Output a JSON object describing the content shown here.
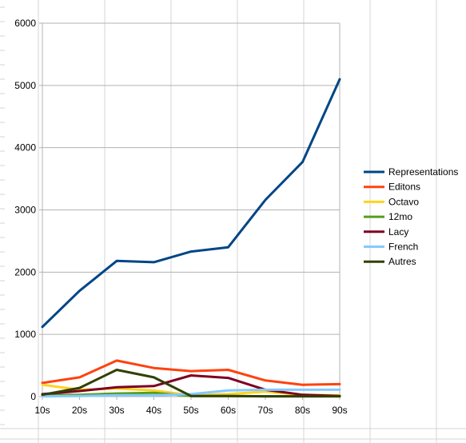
{
  "chart_data": {
    "type": "line",
    "title": "",
    "xlabel": "",
    "ylabel": "",
    "categories": [
      "10s",
      "20s",
      "30s",
      "40s",
      "50s",
      "60s",
      "70s",
      "80s",
      "90s"
    ],
    "ylim": [
      0,
      6000
    ],
    "yticks": [
      0,
      1000,
      2000,
      3000,
      4000,
      5000,
      6000
    ],
    "grid": "horizontal",
    "legend_position": "right",
    "series": [
      {
        "name": "Representations",
        "color": "#004586",
        "values": [
          1120,
          1700,
          2180,
          2160,
          2330,
          2400,
          3160,
          3770,
          5100
        ]
      },
      {
        "name": "Editons",
        "color": "#ff420e",
        "values": [
          220,
          310,
          580,
          460,
          410,
          430,
          260,
          190,
          200
        ]
      },
      {
        "name": " Octavo",
        "color": "#ffd320",
        "values": [
          190,
          110,
          130,
          100,
          20,
          40,
          80,
          30,
          20
        ]
      },
      {
        "name": "12mo",
        "color": "#579d1c",
        "values": [
          20,
          30,
          50,
          60,
          10,
          10,
          5,
          5,
          5
        ]
      },
      {
        "name": "Lacy",
        "color": "#7e0021",
        "values": [
          40,
          90,
          150,
          170,
          340,
          300,
          110,
          30,
          10
        ]
      },
      {
        "name": "French",
        "color": "#83caff",
        "values": [
          5,
          10,
          20,
          20,
          40,
          100,
          110,
          110,
          110
        ]
      },
      {
        "name": "Autres",
        "color": "#314004",
        "values": [
          30,
          140,
          430,
          310,
          10,
          10,
          5,
          5,
          5
        ]
      }
    ]
  }
}
